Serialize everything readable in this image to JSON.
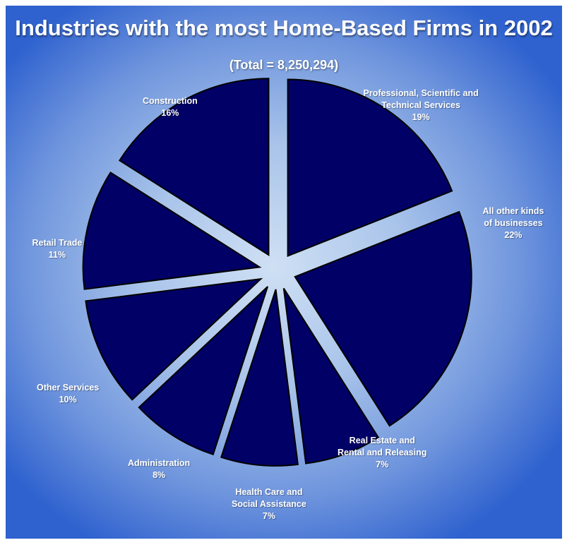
{
  "title": "Industries with the most Home-Based Firms in 2002",
  "subtitle": "(Total = 8,250,294)",
  "chart_data": {
    "type": "pie",
    "title": "Industries with the most Home-Based Firms in 2002",
    "subtitle": "(Total = 8,250,294)",
    "slice_color": "#000066",
    "slice_stroke": "#000000",
    "slices": [
      {
        "label_lines": [
          "Professional, Scientific and",
          "Technical Services"
        ],
        "value": 19,
        "value_text": "19%"
      },
      {
        "label_lines": [
          "All other kinds",
          "of businesses"
        ],
        "value": 22,
        "value_text": "22%"
      },
      {
        "label_lines": [
          "Real Estate and",
          "Rental and Releasing"
        ],
        "value": 7,
        "value_text": "7%"
      },
      {
        "label_lines": [
          "Health Care and",
          "Social Assistance"
        ],
        "value": 7,
        "value_text": "7%"
      },
      {
        "label_lines": [
          "Administration"
        ],
        "value": 8,
        "value_text": "8%"
      },
      {
        "label_lines": [
          "Other Services"
        ],
        "value": 10,
        "value_text": "10%"
      },
      {
        "label_lines": [
          "Retail Trade"
        ],
        "value": 11,
        "value_text": "11%"
      },
      {
        "label_lines": [
          "Construction"
        ],
        "value": 16,
        "value_text": "16%"
      }
    ]
  }
}
